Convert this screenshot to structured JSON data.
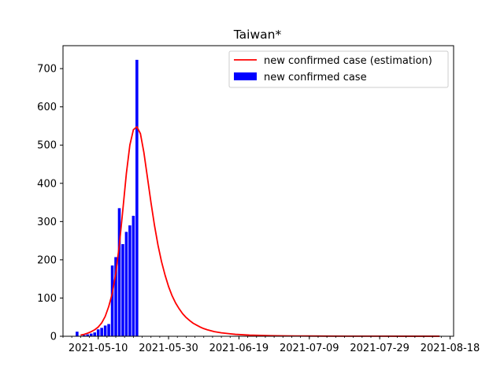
{
  "chart_data": {
    "type": "bar",
    "title": "Taiwan*",
    "xlabel": "",
    "ylabel": "",
    "x_tick_labels": [
      "2021-05-10",
      "2021-05-30",
      "2021-06-19",
      "2021-07-09",
      "2021-07-29",
      "2021-08-18"
    ],
    "y_ticks": [
      0,
      100,
      200,
      300,
      400,
      500,
      600,
      700
    ],
    "xlim": [
      "2021-04-30",
      "2021-08-19"
    ],
    "ylim": [
      0,
      760
    ],
    "legend": {
      "placement": "top-right",
      "entries": [
        "new confirmed case (estimation)",
        "new confirmed case"
      ]
    },
    "grid": false,
    "series": [
      {
        "name": "new confirmed case",
        "kind": "bar",
        "color": "#0000ff",
        "x": [
          "2021-05-04",
          "2021-05-05",
          "2021-05-06",
          "2021-05-07",
          "2021-05-08",
          "2021-05-09",
          "2021-05-10",
          "2021-05-11",
          "2021-05-12",
          "2021-05-13",
          "2021-05-14",
          "2021-05-15",
          "2021-05-16",
          "2021-05-17",
          "2021-05-18",
          "2021-05-19",
          "2021-05-20",
          "2021-05-21"
        ],
        "values": [
          12,
          0,
          3,
          5,
          7,
          10,
          18,
          22,
          28,
          32,
          185,
          207,
          335,
          241,
          273,
          290,
          315,
          723
        ]
      },
      {
        "name": "new confirmed case (estimation)",
        "kind": "line",
        "color": "#ff0000",
        "x": [
          "2021-05-05",
          "2021-05-06",
          "2021-05-07",
          "2021-05-08",
          "2021-05-09",
          "2021-05-10",
          "2021-05-11",
          "2021-05-12",
          "2021-05-13",
          "2021-05-14",
          "2021-05-15",
          "2021-05-16",
          "2021-05-17",
          "2021-05-18",
          "2021-05-19",
          "2021-05-20",
          "2021-05-21",
          "2021-05-22",
          "2021-05-23",
          "2021-05-24",
          "2021-05-25",
          "2021-05-26",
          "2021-05-27",
          "2021-05-28",
          "2021-05-29",
          "2021-05-30",
          "2021-05-31",
          "2021-06-01",
          "2021-06-02",
          "2021-06-03",
          "2021-06-04",
          "2021-06-05",
          "2021-06-06",
          "2021-06-07",
          "2021-06-08",
          "2021-06-09",
          "2021-06-10",
          "2021-06-12",
          "2021-06-14",
          "2021-06-16",
          "2021-06-18",
          "2021-06-20",
          "2021-06-22",
          "2021-06-24",
          "2021-06-26",
          "2021-06-28",
          "2021-06-30",
          "2021-07-02",
          "2021-07-05",
          "2021-07-09",
          "2021-07-14",
          "2021-07-20",
          "2021-07-29",
          "2021-08-08",
          "2021-08-15"
        ],
        "values": [
          3,
          5,
          8,
          12,
          17,
          24,
          35,
          52,
          78,
          112,
          165,
          238,
          330,
          425,
          500,
          540,
          548,
          530,
          480,
          415,
          350,
          290,
          238,
          195,
          160,
          130,
          106,
          87,
          72,
          59,
          49,
          41,
          34,
          29,
          24,
          20,
          17,
          12,
          9,
          7,
          5,
          4,
          3,
          2.5,
          2,
          1.5,
          1.2,
          1,
          0.8,
          0.6,
          0.4,
          0.3,
          0.2,
          0.1,
          0.1
        ]
      }
    ]
  }
}
